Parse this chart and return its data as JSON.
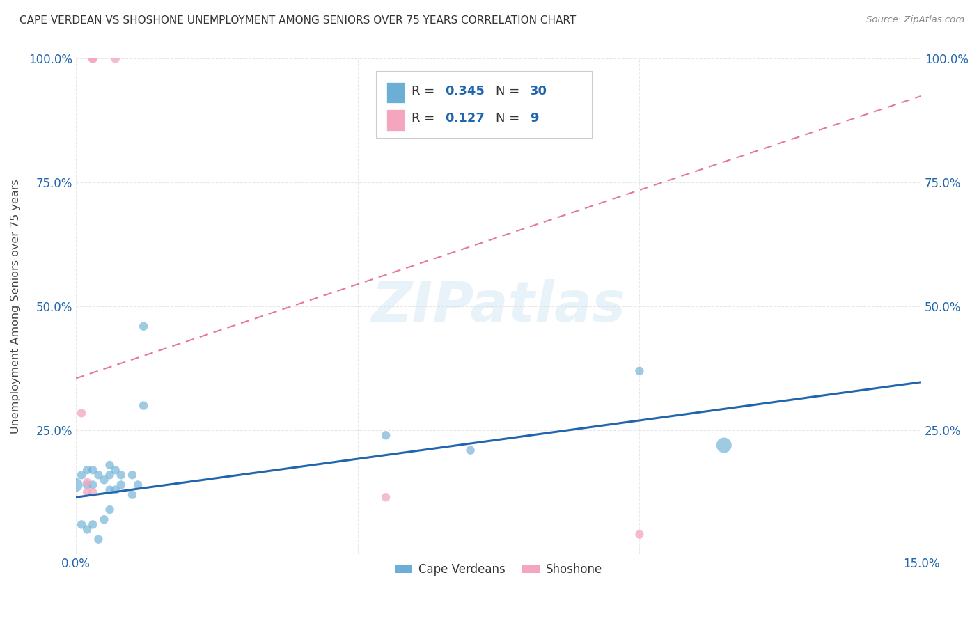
{
  "title": "CAPE VERDEAN VS SHOSHONE UNEMPLOYMENT AMONG SENIORS OVER 75 YEARS CORRELATION CHART",
  "source": "Source: ZipAtlas.com",
  "ylabel": "Unemployment Among Seniors over 75 years",
  "xlim": [
    0.0,
    0.15
  ],
  "ylim": [
    0.0,
    1.0
  ],
  "watermark": "ZIPatlas",
  "cape_verdean_color": "#6baed6",
  "shoshone_color": "#f4a6be",
  "cape_verdean_line_color": "#2166ac",
  "shoshone_line_color": "#e377a0",
  "R_cape": 0.345,
  "N_cape": 30,
  "R_shoshone": 0.127,
  "N_shoshone": 9,
  "cape_verdean_x": [
    0.0,
    0.001,
    0.001,
    0.002,
    0.002,
    0.002,
    0.003,
    0.003,
    0.003,
    0.004,
    0.004,
    0.005,
    0.005,
    0.006,
    0.006,
    0.006,
    0.006,
    0.007,
    0.007,
    0.008,
    0.008,
    0.01,
    0.01,
    0.011,
    0.012,
    0.012,
    0.055,
    0.07,
    0.1,
    0.115
  ],
  "cape_verdean_y": [
    0.14,
    0.16,
    0.06,
    0.17,
    0.14,
    0.05,
    0.17,
    0.14,
    0.06,
    0.16,
    0.03,
    0.15,
    0.07,
    0.18,
    0.16,
    0.13,
    0.09,
    0.17,
    0.13,
    0.16,
    0.14,
    0.16,
    0.12,
    0.14,
    0.46,
    0.3,
    0.24,
    0.21,
    0.37,
    0.22
  ],
  "cape_verdean_sizes": [
    200,
    80,
    80,
    80,
    80,
    80,
    80,
    80,
    80,
    80,
    80,
    80,
    80,
    80,
    80,
    80,
    80,
    80,
    80,
    80,
    80,
    80,
    80,
    80,
    80,
    80,
    80,
    80,
    80,
    250
  ],
  "shoshone_x": [
    0.001,
    0.002,
    0.002,
    0.003,
    0.003,
    0.003,
    0.007,
    0.055,
    0.1
  ],
  "shoshone_y": [
    0.285,
    0.145,
    0.125,
    0.125,
    1.0,
    1.0,
    1.0,
    0.115,
    0.04
  ],
  "shoshone_sizes": [
    80,
    80,
    80,
    80,
    80,
    80,
    80,
    80,
    80
  ],
  "grid_color": "#e8e8e8",
  "background_color": "#ffffff",
  "line_slope_cape": 1.55,
  "line_intercept_cape": 0.115,
  "line_slope_shoshone": 3.8,
  "line_intercept_shoshone": 0.355
}
